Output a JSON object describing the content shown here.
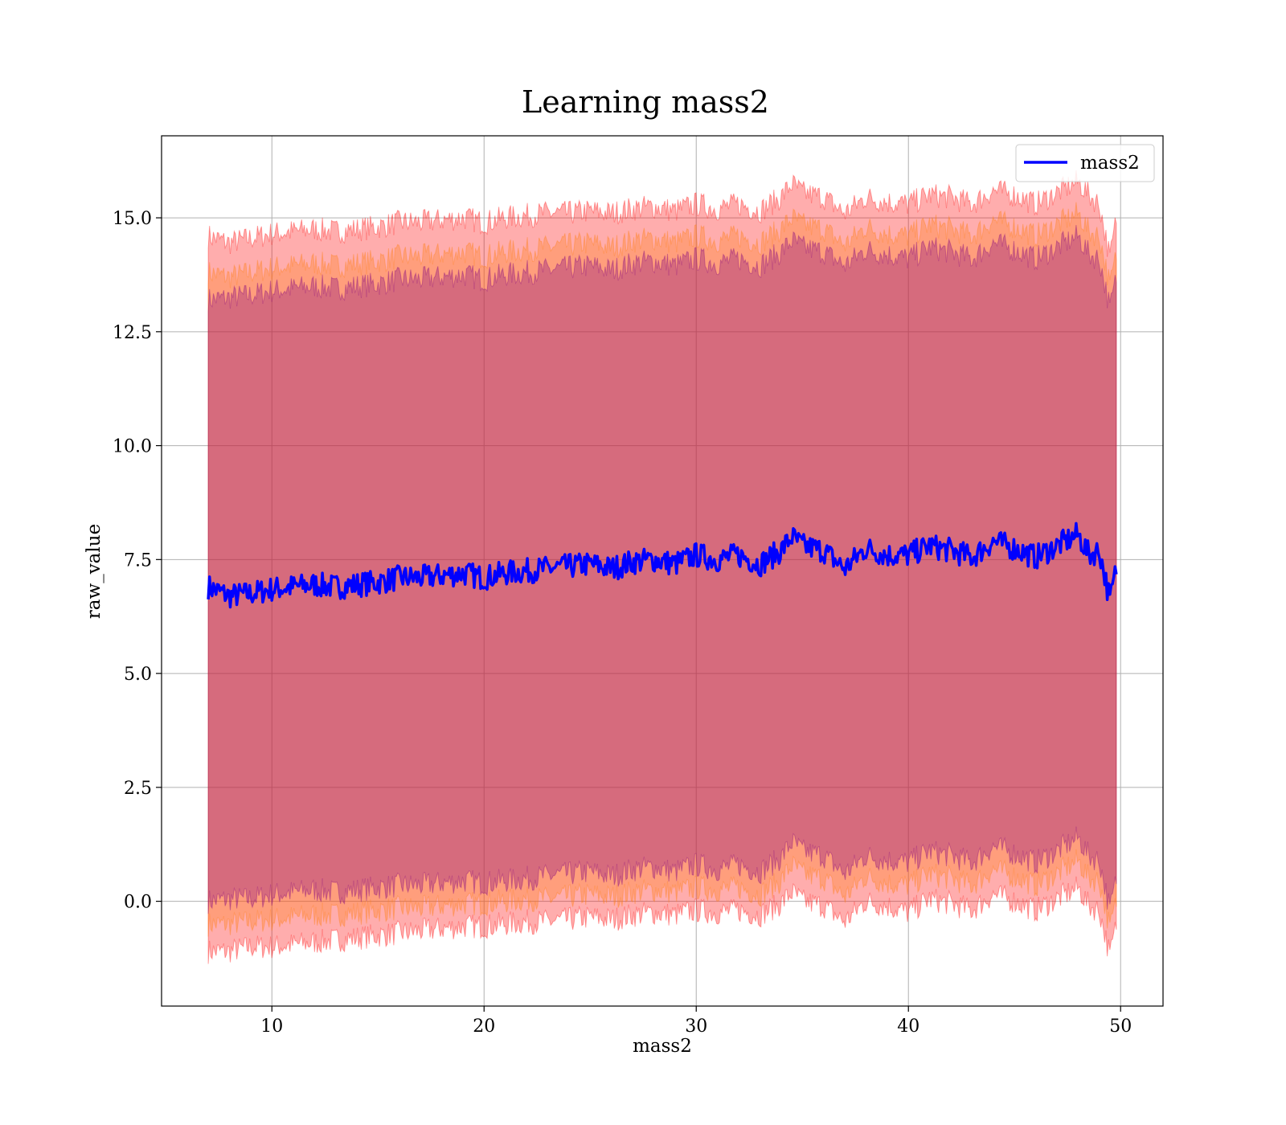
{
  "chart_data": {
    "type": "line",
    "title": "Learning mass2",
    "xlabel": "mass2",
    "ylabel": "raw_value",
    "xlim": [
      4.8,
      52.0
    ],
    "ylim": [
      -2.3,
      16.8
    ],
    "xticks": [
      10,
      20,
      30,
      40,
      50
    ],
    "xtick_labels": [
      "10",
      "20",
      "30",
      "40",
      "50"
    ],
    "yticks": [
      0.0,
      2.5,
      5.0,
      7.5,
      10.0,
      12.5,
      15.0
    ],
    "ytick_labels": [
      "0.0",
      "2.5",
      "5.0",
      "7.5",
      "10.0",
      "12.5",
      "15.0"
    ],
    "grid": true,
    "legend_position": "top-right",
    "colors": {
      "line": "#0000ff",
      "band_outer": "#ff0000",
      "band_middle": "#ff7f0e",
      "band_inner": "#800080",
      "grid": "#b0b0b0"
    },
    "series": [
      {
        "name": "mass2",
        "x": [
          7.0,
          8.0,
          9.0,
          10.0,
          11.0,
          12.0,
          13.0,
          14.0,
          15.0,
          16.0,
          17.0,
          18.0,
          19.0,
          20.0,
          21.0,
          22.0,
          23.0,
          24.0,
          25.0,
          26.0,
          27.0,
          28.0,
          29.0,
          30.0,
          31.0,
          32.0,
          33.0,
          34.0,
          34.5,
          35.0,
          36.0,
          37.0,
          38.0,
          39.0,
          40.0,
          41.0,
          42.0,
          43.0,
          44.0,
          45.0,
          46.0,
          47.0,
          48.0,
          48.5,
          49.0,
          49.5,
          49.8
        ],
        "y": [
          6.9,
          6.7,
          6.75,
          6.85,
          6.9,
          6.95,
          6.9,
          6.95,
          7.0,
          7.1,
          7.1,
          7.15,
          7.2,
          7.1,
          7.2,
          7.25,
          7.3,
          7.35,
          7.4,
          7.3,
          7.45,
          7.5,
          7.4,
          7.6,
          7.5,
          7.6,
          7.4,
          7.7,
          8.0,
          7.8,
          7.7,
          7.3,
          7.75,
          7.6,
          7.6,
          7.8,
          7.7,
          7.55,
          7.9,
          7.75,
          7.55,
          7.8,
          8.05,
          7.6,
          7.7,
          6.6,
          7.3
        ]
      }
    ],
    "bands": [
      {
        "x": [
          7.0,
          8.0,
          9.0,
          10.0,
          11.0,
          12.0,
          13.0,
          14.0,
          15.0,
          16.0,
          17.0,
          18.0,
          19.0,
          20.0,
          21.0,
          22.0,
          23.0,
          24.0,
          25.0,
          26.0,
          27.0,
          28.0,
          29.0,
          30.0,
          31.0,
          32.0,
          33.0,
          34.0,
          34.5,
          35.0,
          36.0,
          37.0,
          38.0,
          39.0,
          40.0,
          41.0,
          42.0,
          43.0,
          44.0,
          45.0,
          46.0,
          47.0,
          48.0,
          48.5,
          49.0,
          49.5,
          49.8
        ],
        "lower": [
          -1.1,
          -1.1,
          -1.0,
          -1.0,
          -0.95,
          -0.9,
          -0.85,
          -0.8,
          -0.75,
          -0.7,
          -0.65,
          -0.6,
          -0.55,
          -0.55,
          -0.5,
          -0.45,
          -0.45,
          -0.4,
          -0.35,
          -0.4,
          -0.3,
          -0.25,
          -0.3,
          -0.2,
          -0.25,
          -0.2,
          -0.3,
          -0.05,
          0.2,
          0.0,
          -0.1,
          -0.45,
          0.0,
          -0.1,
          -0.25,
          0.05,
          -0.05,
          -0.2,
          0.15,
          0.0,
          -0.2,
          0.05,
          0.3,
          -0.1,
          -0.2,
          -1.2,
          -0.5
        ],
        "upper": [
          14.6,
          14.45,
          14.55,
          14.65,
          14.7,
          14.75,
          14.7,
          14.75,
          14.8,
          14.9,
          14.9,
          14.95,
          15.0,
          14.9,
          15.0,
          15.05,
          15.1,
          15.1,
          15.15,
          15.1,
          15.2,
          15.25,
          15.15,
          15.3,
          15.2,
          15.3,
          15.15,
          15.45,
          15.75,
          15.55,
          15.45,
          15.1,
          15.45,
          15.35,
          15.3,
          15.5,
          15.45,
          15.3,
          15.6,
          15.5,
          15.3,
          15.55,
          15.8,
          15.5,
          15.3,
          14.1,
          15.0
        ],
        "color": "#ff0000",
        "opacity": 0.32
      },
      {
        "x": [
          7.0,
          8.0,
          9.0,
          10.0,
          11.0,
          12.0,
          13.0,
          14.0,
          15.0,
          16.0,
          17.0,
          18.0,
          19.0,
          20.0,
          21.0,
          22.0,
          23.0,
          24.0,
          25.0,
          26.0,
          27.0,
          28.0,
          29.0,
          30.0,
          31.0,
          32.0,
          33.0,
          34.0,
          34.5,
          35.0,
          36.0,
          37.0,
          38.0,
          39.0,
          40.0,
          41.0,
          42.0,
          43.0,
          44.0,
          45.0,
          46.0,
          47.0,
          48.0,
          48.5,
          49.0,
          49.5,
          49.8
        ],
        "lower": [
          -0.5,
          -0.5,
          -0.45,
          -0.4,
          -0.35,
          -0.3,
          -0.3,
          -0.25,
          -0.2,
          -0.15,
          -0.15,
          -0.1,
          -0.05,
          -0.05,
          0.0,
          0.05,
          0.05,
          0.1,
          0.15,
          0.1,
          0.2,
          0.25,
          0.2,
          0.3,
          0.25,
          0.3,
          0.15,
          0.45,
          0.8,
          0.6,
          0.5,
          0.1,
          0.55,
          0.4,
          0.35,
          0.6,
          0.5,
          0.35,
          0.7,
          0.55,
          0.35,
          0.6,
          0.9,
          0.5,
          0.45,
          -0.6,
          0.0
        ],
        "upper": [
          13.8,
          13.7,
          13.8,
          13.9,
          13.95,
          14.0,
          13.95,
          14.0,
          14.05,
          14.15,
          14.15,
          14.2,
          14.25,
          14.15,
          14.25,
          14.3,
          14.35,
          14.4,
          14.45,
          14.35,
          14.5,
          14.55,
          14.45,
          14.6,
          14.5,
          14.6,
          14.45,
          14.75,
          15.0,
          14.85,
          14.75,
          14.4,
          14.8,
          14.65,
          14.6,
          14.85,
          14.75,
          14.6,
          14.95,
          14.8,
          14.6,
          14.85,
          15.1,
          14.7,
          14.6,
          13.5,
          14.2
        ],
        "color": "#ff7f0e",
        "opacity": 0.3
      },
      {
        "x": [
          7.0,
          8.0,
          9.0,
          10.0,
          11.0,
          12.0,
          13.0,
          14.0,
          15.0,
          16.0,
          17.0,
          18.0,
          19.0,
          20.0,
          21.0,
          22.0,
          23.0,
          24.0,
          25.0,
          26.0,
          27.0,
          28.0,
          29.0,
          30.0,
          31.0,
          32.0,
          33.0,
          34.0,
          34.5,
          35.0,
          36.0,
          37.0,
          38.0,
          39.0,
          40.0,
          41.0,
          42.0,
          43.0,
          44.0,
          45.0,
          46.0,
          47.0,
          48.0,
          48.5,
          49.0,
          49.5,
          49.8
        ],
        "lower": [
          0.0,
          0.05,
          0.05,
          0.15,
          0.2,
          0.25,
          0.2,
          0.25,
          0.3,
          0.35,
          0.35,
          0.4,
          0.45,
          0.4,
          0.45,
          0.5,
          0.55,
          0.6,
          0.65,
          0.55,
          0.7,
          0.75,
          0.65,
          0.8,
          0.7,
          0.8,
          0.65,
          0.95,
          1.3,
          1.1,
          1.0,
          0.6,
          1.0,
          0.9,
          0.85,
          1.1,
          1.0,
          0.85,
          1.2,
          1.05,
          0.85,
          1.1,
          1.4,
          1.0,
          0.9,
          -0.2,
          0.5
        ],
        "upper": [
          13.2,
          13.25,
          13.3,
          13.4,
          13.45,
          13.5,
          13.45,
          13.5,
          13.55,
          13.65,
          13.65,
          13.7,
          13.75,
          13.65,
          13.75,
          13.8,
          13.85,
          13.9,
          13.95,
          13.85,
          14.0,
          14.05,
          13.95,
          14.1,
          14.0,
          14.1,
          13.95,
          14.25,
          14.5,
          14.35,
          14.25,
          13.95,
          14.3,
          14.2,
          14.1,
          14.35,
          14.25,
          14.1,
          14.45,
          14.3,
          14.1,
          14.35,
          14.6,
          14.2,
          14.1,
          13.0,
          13.7
        ],
        "color": "#800080",
        "opacity": 0.32
      }
    ]
  }
}
